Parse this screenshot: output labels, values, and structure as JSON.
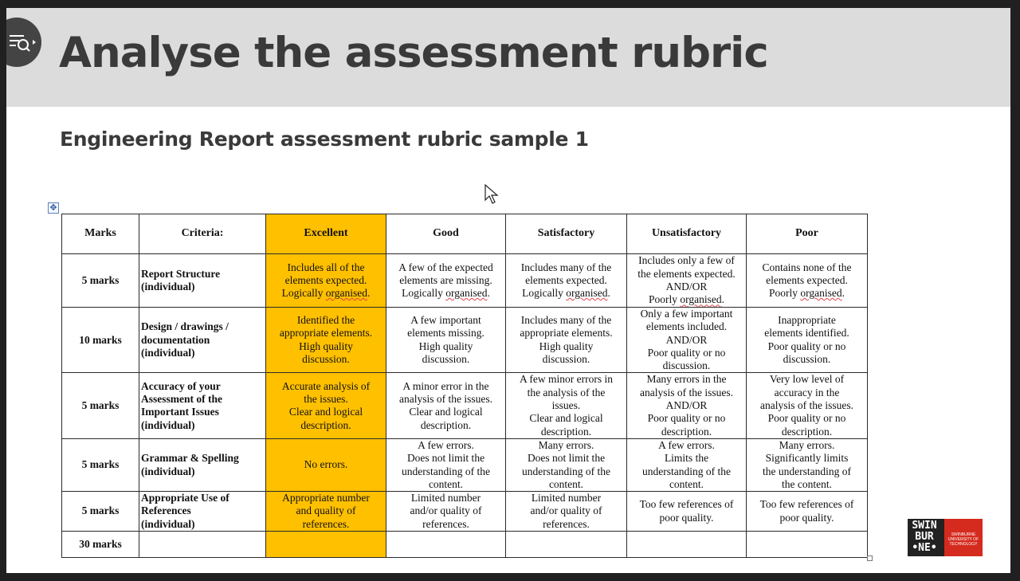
{
  "slide": {
    "title": "Analyse the assessment rubric",
    "subtitle": "Engineering Report assessment rubric sample 1"
  },
  "logo": {
    "text": [
      "SWIN",
      "BUR",
      "•NE•"
    ],
    "caption": [
      "SWINBURNE",
      "UNIVERSITY OF",
      "TECHNOLOGY"
    ]
  },
  "rubric": {
    "headers": [
      "Marks",
      "Criteria:",
      "Excellent",
      "Good",
      "Satisfactory",
      "Unsatisfactory",
      "Poor"
    ],
    "rows": [
      {
        "marks": "5 marks",
        "criteria": [
          "Report Structure",
          "(individual)"
        ],
        "levels": [
          [
            "Includes all of the",
            "elements expected.",
            "Logically organised."
          ],
          [
            "A few of the expected",
            "elements are missing.",
            "Logically organised."
          ],
          [
            "Includes many of the",
            "elements expected.",
            "Logically organised."
          ],
          [
            "Includes only a few of",
            "the elements expected.",
            "AND/OR",
            "Poorly organised."
          ],
          [
            "Contains none of the",
            "elements expected.",
            "Poorly organised."
          ]
        ]
      },
      {
        "marks": "10 marks",
        "criteria": [
          "Design / drawings /",
          "documentation",
          "(individual)"
        ],
        "levels": [
          [
            "Identified the",
            "appropriate elements.",
            "High quality",
            "discussion."
          ],
          [
            "A few important",
            "elements missing.",
            "High quality",
            "discussion."
          ],
          [
            "Includes many of the",
            "appropriate elements.",
            "High quality",
            "discussion."
          ],
          [
            "Only a few important",
            "elements included.",
            "AND/OR",
            "Poor quality or no",
            "discussion."
          ],
          [
            "Inappropriate",
            "elements identified.",
            "Poor quality or no",
            "discussion."
          ]
        ]
      },
      {
        "marks": "5 marks",
        "criteria": [
          "Accuracy of your",
          "Assessment of the",
          "Important Issues",
          "(individual)"
        ],
        "levels": [
          [
            "Accurate analysis of",
            "the issues.",
            "Clear and logical",
            "description."
          ],
          [
            "A minor error in the",
            "analysis of the issues.",
            "Clear and logical",
            "description."
          ],
          [
            "A few minor errors in",
            "the analysis of the",
            "issues.",
            "Clear and logical",
            "description."
          ],
          [
            "Many errors in the",
            "analysis of the issues.",
            "AND/OR",
            "Poor quality or no",
            "description."
          ],
          [
            "Very low level of",
            "accuracy in the",
            "analysis of the issues.",
            "Poor quality or no",
            "description."
          ]
        ]
      },
      {
        "marks": "5 marks",
        "criteria": [
          "Grammar & Spelling",
          "(individual)"
        ],
        "levels": [
          [
            "No errors."
          ],
          [
            "A few errors.",
            "Does not limit the",
            "understanding of the",
            "content."
          ],
          [
            "Many errors.",
            "Does not limit the",
            "understanding of the",
            "content."
          ],
          [
            "A few errors.",
            "Limits the",
            "understanding of the",
            "content."
          ],
          [
            "Many errors.",
            "Significantly limits",
            "the understanding of",
            "the content."
          ]
        ]
      },
      {
        "marks": "5 marks",
        "criteria": [
          "Appropriate Use of",
          "References",
          "(individual)"
        ],
        "levels": [
          [
            "Appropriate number",
            "and quality of",
            "references."
          ],
          [
            "Limited number",
            "and/or quality of",
            "references."
          ],
          [
            "Limited number",
            "and/or quality of",
            "references."
          ],
          [
            "Too few references of",
            "poor quality."
          ],
          [
            "Too few references of",
            "poor quality."
          ]
        ]
      }
    ],
    "total": "30 marks"
  },
  "colors": {
    "excellent": "#ffc000",
    "title_band": "#dcdcdc",
    "frame": "#202020"
  }
}
